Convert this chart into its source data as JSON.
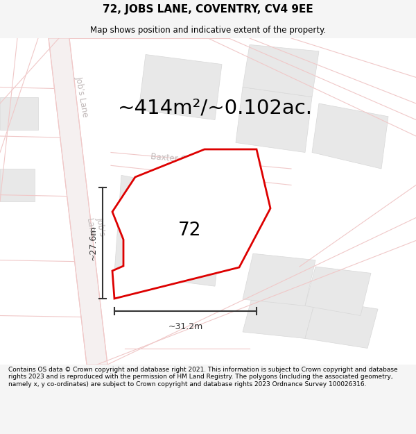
{
  "title": "72, JOBS LANE, COVENTRY, CV4 9EE",
  "subtitle": "Map shows position and indicative extent of the property.",
  "area_text": "~414m²/~0.102ac.",
  "dim_width": "~31.2m",
  "dim_height": "~27.6m",
  "label": "72",
  "footer": "Contains OS data © Crown copyright and database right 2021. This information is subject to Crown copyright and database rights 2023 and is reproduced with the permission of HM Land Registry. The polygons (including the associated geometry, namely x, y co-ordinates) are subject to Crown copyright and database rights 2023 Ordnance Survey 100026316.",
  "bg_color": "#f5f5f5",
  "map_bg": "#ffffff",
  "road_color": "#f0c8c8",
  "road_fill": "#f8f0f0",
  "block_fill": "#e8e8e8",
  "block_edge": "#d8d8d8",
  "boundary_color": "#dd0000",
  "boundary_lw": 2.0,
  "boundary_fill": "#ffffff",
  "dim_color": "#333333",
  "street_label_color": "#c0b8b8",
  "title_fontsize": 11,
  "subtitle_fontsize": 8.5,
  "area_fontsize": 21,
  "label_fontsize": 19,
  "footer_fontsize": 6.5,
  "street_fontsize": 8.5
}
